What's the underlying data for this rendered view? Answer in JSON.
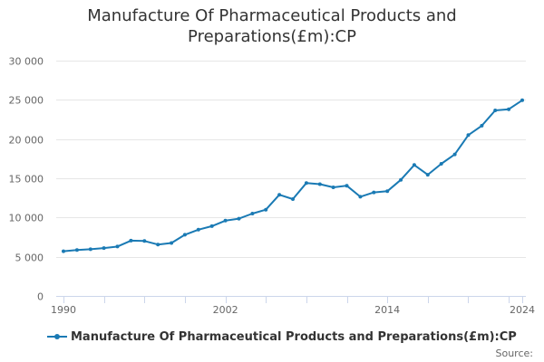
{
  "chart_data": {
    "type": "line",
    "title": "Manufacture Of Pharmaceutical Products and Preparations(£m):CP",
    "title_lines": [
      "Manufacture Of Pharmaceutical Products and",
      "Preparations(£m):CP"
    ],
    "xlabel": "",
    "ylabel": "",
    "xlim": [
      1990,
      2024
    ],
    "ylim": [
      0,
      30000
    ],
    "x_tick_labels": [
      "1990",
      "2002",
      "2014",
      "2024"
    ],
    "x_tick_values": [
      1990,
      2002,
      2014,
      2024
    ],
    "y_tick_values": [
      0,
      5000,
      10000,
      15000,
      20000,
      25000,
      30000
    ],
    "y_tick_labels": [
      "0",
      "5 000",
      "10 000",
      "15 000",
      "20 000",
      "25 000",
      "30 000"
    ],
    "grid": true,
    "legend_position": "bottom-left",
    "series": [
      {
        "name": "Manufacture Of Pharmaceutical Products and Preparations(£m):CP",
        "color": "#1a7ab4",
        "x": [
          1990,
          1991,
          1992,
          1993,
          1994,
          1995,
          1996,
          1997,
          1998,
          1999,
          2000,
          2001,
          2002,
          2003,
          2004,
          2005,
          2006,
          2007,
          2008,
          2009,
          2010,
          2011,
          2012,
          2013,
          2014,
          2015,
          2016,
          2017,
          2018,
          2019,
          2020,
          2021,
          2022,
          2023,
          2024
        ],
        "values": [
          5700,
          5850,
          5950,
          6100,
          6300,
          7050,
          7000,
          6550,
          6750,
          7800,
          8450,
          8900,
          9600,
          9850,
          10500,
          11000,
          12900,
          12350,
          14400,
          14250,
          13850,
          14050,
          12650,
          13200,
          13350,
          14800,
          16700,
          15450,
          16850,
          18050,
          20500,
          21700,
          23650,
          23800,
          24950
        ]
      }
    ]
  },
  "legend": {
    "label": "Manufacture Of Pharmaceutical Products and Preparations(£m):CP"
  },
  "footer": {
    "source_label": "Source:"
  }
}
